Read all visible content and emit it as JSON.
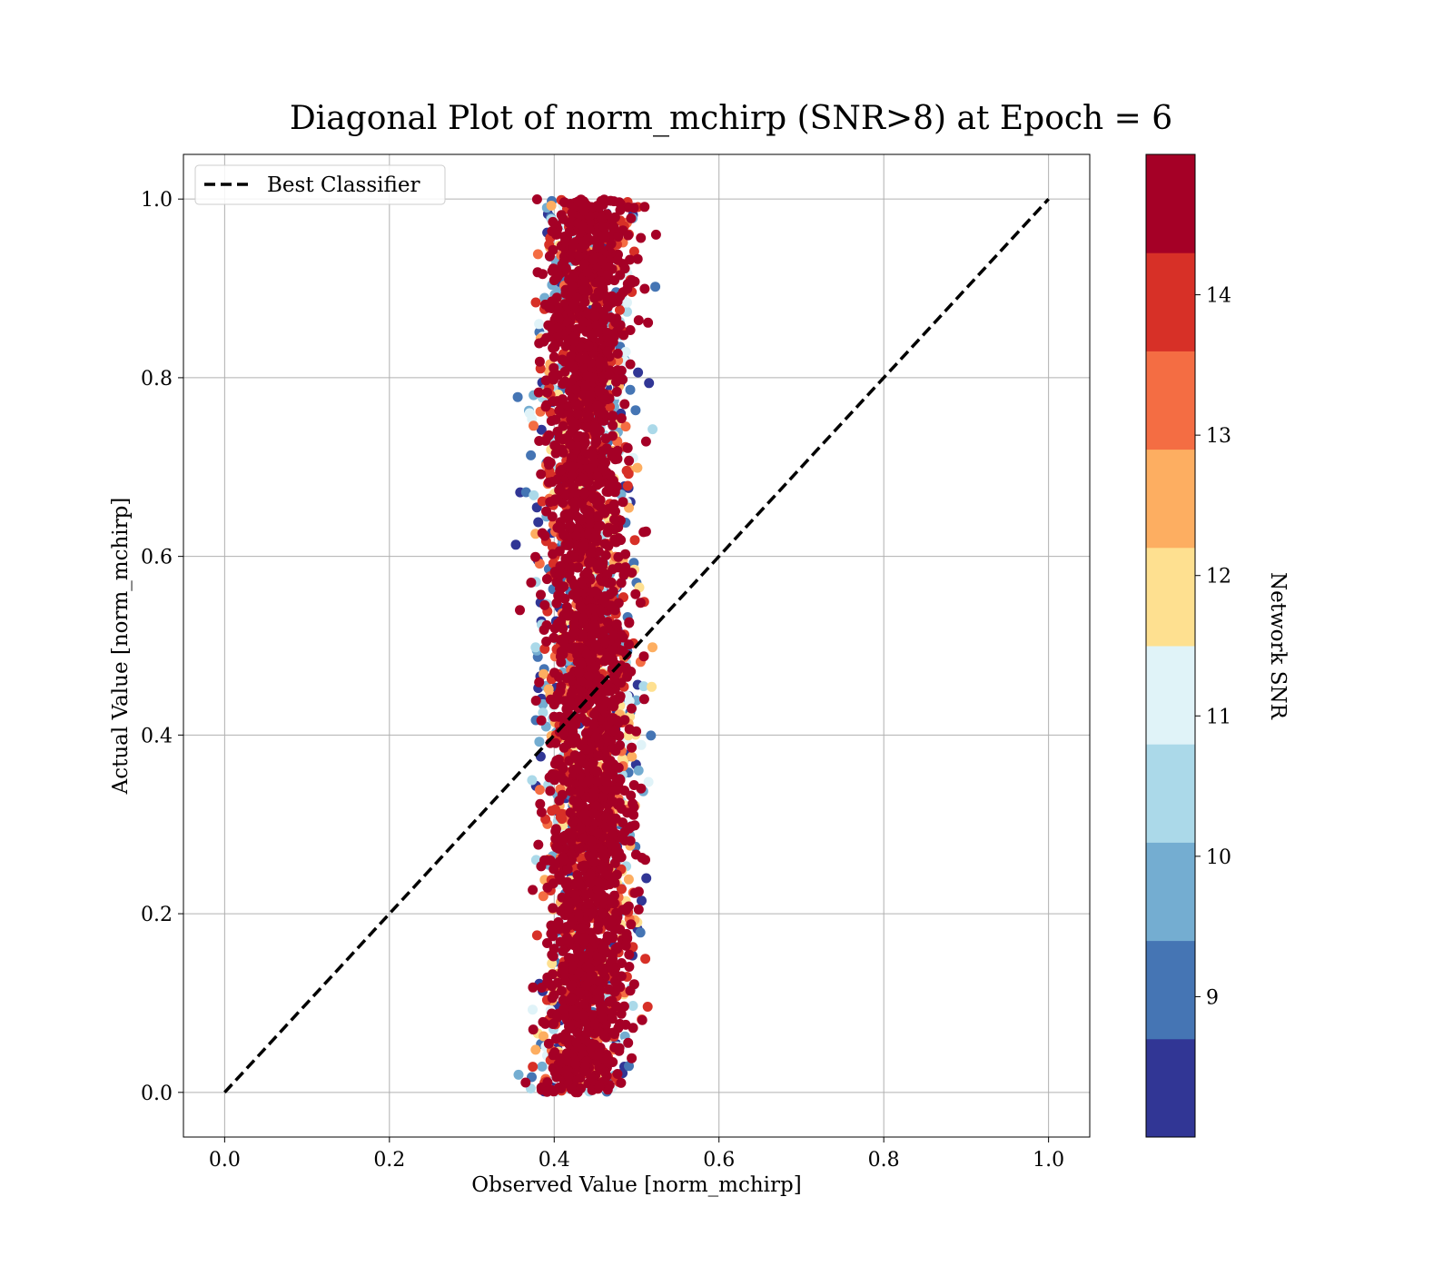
{
  "chart_data": {
    "type": "scatter",
    "title": "Diagonal Plot of norm_mchirp (SNR>8) at Epoch = 6",
    "xlabel": "Observed Value [norm_mchirp]",
    "ylabel": "Actual Value [norm_mchirp]",
    "xlim": [
      -0.05,
      1.05
    ],
    "ylim": [
      -0.05,
      1.05
    ],
    "x_ticks": [
      "0.0",
      "0.2",
      "0.4",
      "0.6",
      "0.8",
      "1.0"
    ],
    "y_ticks": [
      "0.0",
      "0.2",
      "0.4",
      "0.6",
      "0.8",
      "1.0"
    ],
    "x_tick_values": [
      0.0,
      0.2,
      0.4,
      0.6,
      0.8,
      1.0
    ],
    "y_tick_values": [
      0.0,
      0.2,
      0.4,
      0.6,
      0.8,
      1.0
    ],
    "grid": true,
    "legend": {
      "placement": "top-left",
      "entries": [
        {
          "label": "Best Classifier",
          "style": "dashed",
          "color": "#000000"
        }
      ]
    },
    "reference_line": {
      "name": "Best Classifier",
      "x": [
        0.0,
        1.0
      ],
      "y": [
        0.0,
        1.0
      ]
    },
    "scatter_cloud": {
      "description_free": true,
      "center_x_at_y0": 0.43,
      "center_x_at_y1": 0.45,
      "x_spread": 0.05,
      "y_range": [
        0.0,
        1.0
      ]
    },
    "colorbar": {
      "label": "Network SNR",
      "min": 8,
      "max": 15,
      "ticks": [
        "9",
        "10",
        "11",
        "12",
        "13",
        "14"
      ],
      "tick_values": [
        9,
        10,
        11,
        12,
        13,
        14
      ],
      "colors": [
        "#313695",
        "#4575b4",
        "#74add1",
        "#abd9e9",
        "#e0f3f8",
        "#fee090",
        "#fdae61",
        "#f46d43",
        "#d73027",
        "#a50026"
      ]
    }
  }
}
